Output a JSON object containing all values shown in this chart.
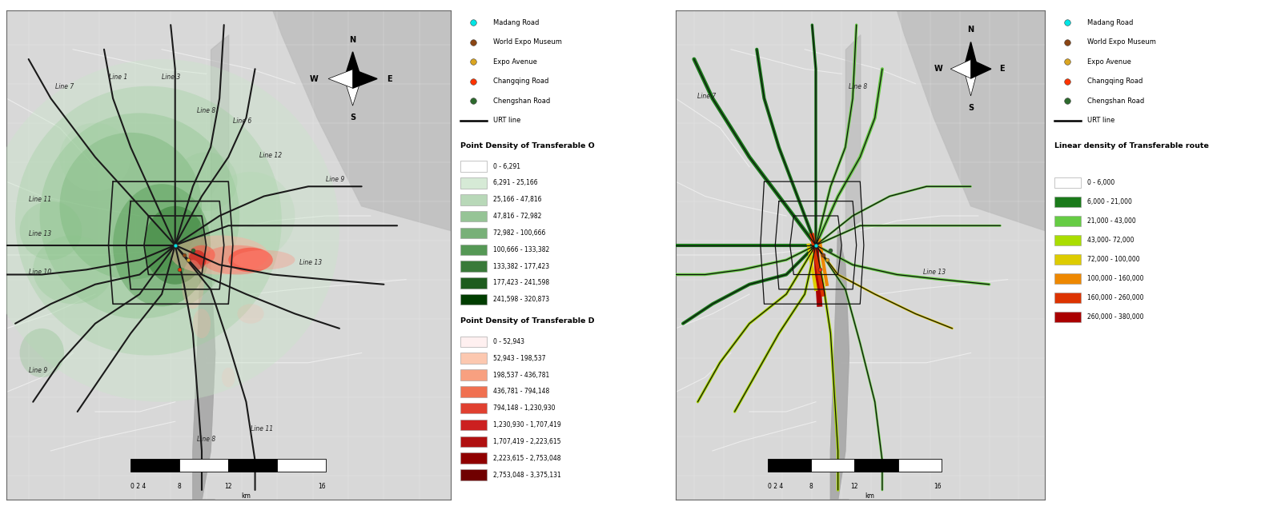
{
  "fig_width": 15.9,
  "fig_height": 6.38,
  "bg_color": "#ffffff",
  "left_legend": {
    "points": [
      {
        "label": "Madang Road",
        "color": "#00e5e5"
      },
      {
        "label": "World Expo Museum",
        "color": "#8B4513"
      },
      {
        "label": "Expo Avenue",
        "color": "#DAA520"
      },
      {
        "label": "Changqing Road",
        "color": "#FF3300"
      },
      {
        "label": "Chengshan Road",
        "color": "#2d6a2d"
      }
    ],
    "urt_line": {
      "label": "URT line",
      "color": "#000000"
    },
    "density_O_title": "Point Density of Transferable O",
    "density_O_items": [
      {
        "label": "0 - 6,291",
        "color": "#ffffff"
      },
      {
        "label": "6,291 - 25,166",
        "color": "#d6ead6"
      },
      {
        "label": "25,166 - 47,816",
        "color": "#b8d8b8"
      },
      {
        "label": "47,816 - 72,982",
        "color": "#96c496"
      },
      {
        "label": "72,982 - 100,666",
        "color": "#78b078"
      },
      {
        "label": "100,666 - 133,382",
        "color": "#559855"
      },
      {
        "label": "133,382 - 177,423",
        "color": "#3a7a3a"
      },
      {
        "label": "177,423 - 241,598",
        "color": "#1e5c1e"
      },
      {
        "label": "241,598 - 320,873",
        "color": "#003d00"
      }
    ],
    "density_D_title": "Point Density of Transferable D",
    "density_D_items": [
      {
        "label": "0 - 52,943",
        "color": "#fff0f0"
      },
      {
        "label": "52,943 - 198,537",
        "color": "#fcc8b0"
      },
      {
        "label": "198,537 - 436,781",
        "color": "#f8a080"
      },
      {
        "label": "436,781 - 794,148",
        "color": "#f07050"
      },
      {
        "label": "794,148 - 1,230,930",
        "color": "#e04030"
      },
      {
        "label": "1,230,930 - 1,707,419",
        "color": "#cc2020"
      },
      {
        "label": "1,707,419 - 2,223,615",
        "color": "#b01010"
      },
      {
        "label": "2,223,615 - 2,753,048",
        "color": "#900000"
      },
      {
        "label": "2,753,048 - 3,375,131",
        "color": "#700000"
      }
    ]
  },
  "right_legend": {
    "points": [
      {
        "label": "Madang Road",
        "color": "#00e5e5"
      },
      {
        "label": "World Expo Museum",
        "color": "#8B4513"
      },
      {
        "label": "Expo Avenue",
        "color": "#DAA520"
      },
      {
        "label": "Changqing Road",
        "color": "#FF3300"
      },
      {
        "label": "Chengshan Road",
        "color": "#2d6a2d"
      }
    ],
    "urt_line": {
      "label": "URT line",
      "color": "#000000"
    },
    "linear_density_title": "Linear density of Transferable route",
    "linear_density_items": [
      {
        "label": "0 - 6,000",
        "color": "#ffffff"
      },
      {
        "label": "6,000 - 21,000",
        "color": "#1a7a1a"
      },
      {
        "label": "21,000 - 43,000",
        "color": "#66cc44"
      },
      {
        "label": "43,000- 72,000",
        "color": "#aadd00"
      },
      {
        "label": "72,000 - 100,000",
        "color": "#ddcc00"
      },
      {
        "label": "100,000 - 160,000",
        "color": "#ee8800"
      },
      {
        "label": "160,000 - 260,000",
        "color": "#dd3300"
      },
      {
        "label": "260,000 - 380,000",
        "color": "#aa0000"
      }
    ]
  }
}
